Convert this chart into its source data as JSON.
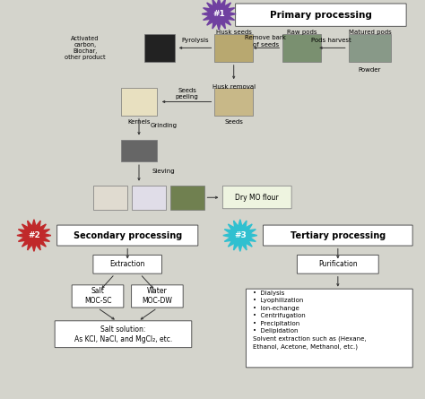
{
  "bg_color": "#d4d4cc",
  "primary_badge_color": "#7040a0",
  "secondary_badge_color": "#c0292a",
  "tertiary_badge_color": "#30c0d0",
  "primary_title": "Primary processing",
  "secondary_title": "Secondary processing",
  "tertiary_title": "Tertiary processing",
  "activated_text": "Activated\ncarbon,\nBiochar,\nother product",
  "husk_seeds_label": "Husk seeds",
  "remove_bark_label": "Remove bark\nof seeds",
  "raw_pods_label": "Raw pods",
  "pods_harvest_label": "Pods harvest",
  "matured_pods_label": "Matured pods",
  "powder_label": "Powder",
  "pyrolysis_label": "Pyrolysis",
  "husk_removal_label": "Husk removal",
  "kernels_label": "Kernels",
  "seeds_label": "Seeds",
  "seeds_peeling_label": "Seeds\npeeling",
  "grinding_label": "Grinding",
  "sieving_label": "Sieving",
  "dry_mo_label": "Dry MO flour",
  "extraction_label": "Extraction",
  "salt_label": "Salt\nMOC-SC",
  "water_label": "Water\nMOC-DW",
  "salt_solution_label": "Salt solution:\nAs KCl, NaCl, and MgCl₂, etc.",
  "purification_label": "Purification",
  "methods_text": "•  Dialysis\n•  Lyophilization\n•  Ion-echange\n•  Centrifugation\n•  Precipitation\n•  Delipidation\nSolvent extraction such as (Hexane,\nEthanol, Acetone, Methanol, etc.)"
}
